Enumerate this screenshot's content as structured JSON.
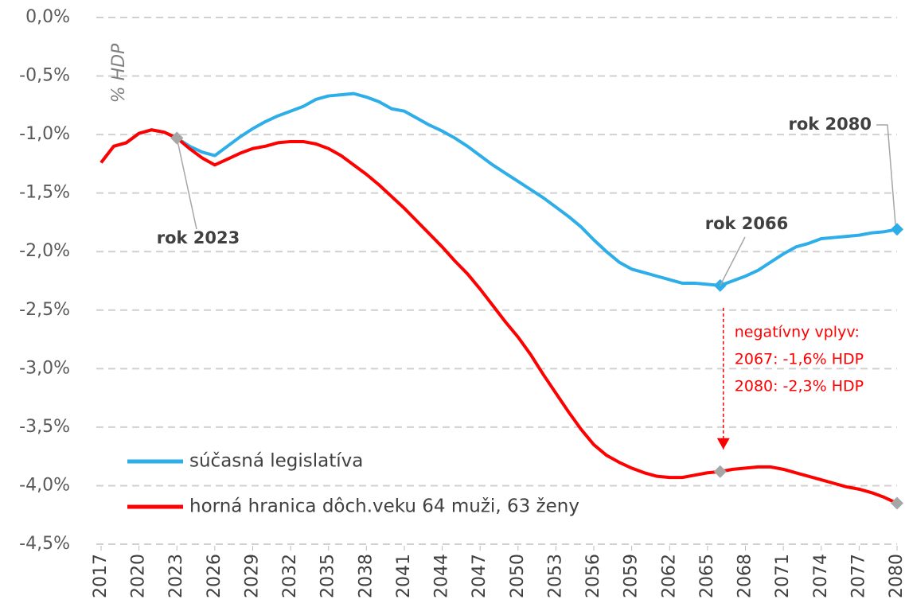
{
  "chart_data": {
    "type": "line",
    "y_label": "% HDP",
    "x": [
      2017,
      2018,
      2019,
      2020,
      2021,
      2022,
      2023,
      2024,
      2025,
      2026,
      2027,
      2028,
      2029,
      2030,
      2031,
      2032,
      2033,
      2034,
      2035,
      2036,
      2037,
      2038,
      2039,
      2040,
      2041,
      2042,
      2043,
      2044,
      2045,
      2046,
      2047,
      2048,
      2049,
      2050,
      2051,
      2052,
      2053,
      2054,
      2055,
      2056,
      2057,
      2058,
      2059,
      2060,
      2061,
      2062,
      2063,
      2064,
      2065,
      2066,
      2067,
      2068,
      2069,
      2070,
      2071,
      2072,
      2073,
      2074,
      2075,
      2076,
      2077,
      2078,
      2079,
      2080
    ],
    "series": [
      {
        "name": "súčasná legislatíva",
        "color": "#2eaee8",
        "values": [
          -1.24,
          -1.1,
          -1.07,
          -0.99,
          -0.96,
          -0.98,
          -1.03,
          -1.1,
          -1.15,
          -1.18,
          -1.1,
          -1.02,
          -0.95,
          -0.89,
          -0.84,
          -0.8,
          -0.76,
          -0.7,
          -0.67,
          -0.66,
          -0.65,
          -0.68,
          -0.72,
          -0.78,
          -0.8,
          -0.86,
          -0.92,
          -0.97,
          -1.03,
          -1.1,
          -1.18,
          -1.26,
          -1.33,
          -1.4,
          -1.47,
          -1.54,
          -1.62,
          -1.7,
          -1.79,
          -1.9,
          -2.0,
          -2.09,
          -2.15,
          -2.18,
          -2.21,
          -2.24,
          -2.27,
          -2.27,
          -2.28,
          -2.29,
          -2.25,
          -2.21,
          -2.16,
          -2.09,
          -2.02,
          -1.96,
          -1.93,
          -1.89,
          -1.88,
          -1.87,
          -1.86,
          -1.84,
          -1.83,
          -1.81
        ]
      },
      {
        "name": "horná hranica dôch.veku 64 muži, 63 ženy",
        "color": "#ff0000",
        "values": [
          -1.24,
          -1.1,
          -1.07,
          -0.99,
          -0.96,
          -0.98,
          -1.03,
          -1.12,
          -1.2,
          -1.26,
          -1.21,
          -1.16,
          -1.12,
          -1.1,
          -1.07,
          -1.06,
          -1.06,
          -1.08,
          -1.12,
          -1.18,
          -1.26,
          -1.34,
          -1.43,
          -1.53,
          -1.63,
          -1.74,
          -1.85,
          -1.96,
          -2.08,
          -2.19,
          -2.32,
          -2.46,
          -2.6,
          -2.73,
          -2.88,
          -3.05,
          -3.21,
          -3.37,
          -3.52,
          -3.65,
          -3.74,
          -3.8,
          -3.85,
          -3.89,
          -3.92,
          -3.93,
          -3.93,
          -3.91,
          -3.89,
          -3.88,
          -3.86,
          -3.85,
          -3.84,
          -3.84,
          -3.86,
          -3.89,
          -3.92,
          -3.95,
          -3.98,
          -4.01,
          -4.03,
          -4.06,
          -4.1,
          -4.15
        ]
      }
    ],
    "annotations": [
      {
        "text": "rok 2023",
        "x": 2023
      },
      {
        "text": "rok 2066",
        "x": 2066
      },
      {
        "text": "rok 2080",
        "x": 2080
      }
    ],
    "note": [
      "negatívny vplyv:",
      "2067: -1,6% HDP",
      "2080: -2,3% HDP"
    ],
    "xlim": [
      2017,
      2080
    ],
    "xticks": [
      2017,
      2020,
      2023,
      2026,
      2029,
      2032,
      2035,
      2038,
      2041,
      2044,
      2047,
      2050,
      2053,
      2056,
      2059,
      2062,
      2065,
      2068,
      2071,
      2074,
      2077,
      2080
    ],
    "ylim": [
      -4.5,
      0
    ],
    "yticks": [
      {
        "value": 0,
        "label": "0,0%"
      },
      {
        "value": -0.5,
        "label": "-0,5%"
      },
      {
        "value": -1,
        "label": "-1,0%"
      },
      {
        "value": -1.5,
        "label": "-1,5%"
      },
      {
        "value": -2,
        "label": "-2,0%"
      },
      {
        "value": -2.5,
        "label": "-2,5%"
      },
      {
        "value": -3,
        "label": "-3,0%"
      },
      {
        "value": -3.5,
        "label": "-3,5%"
      },
      {
        "value": -4,
        "label": "-4,0%"
      },
      {
        "value": -4.5,
        "label": "-4,5%"
      }
    ],
    "grid": true
  }
}
